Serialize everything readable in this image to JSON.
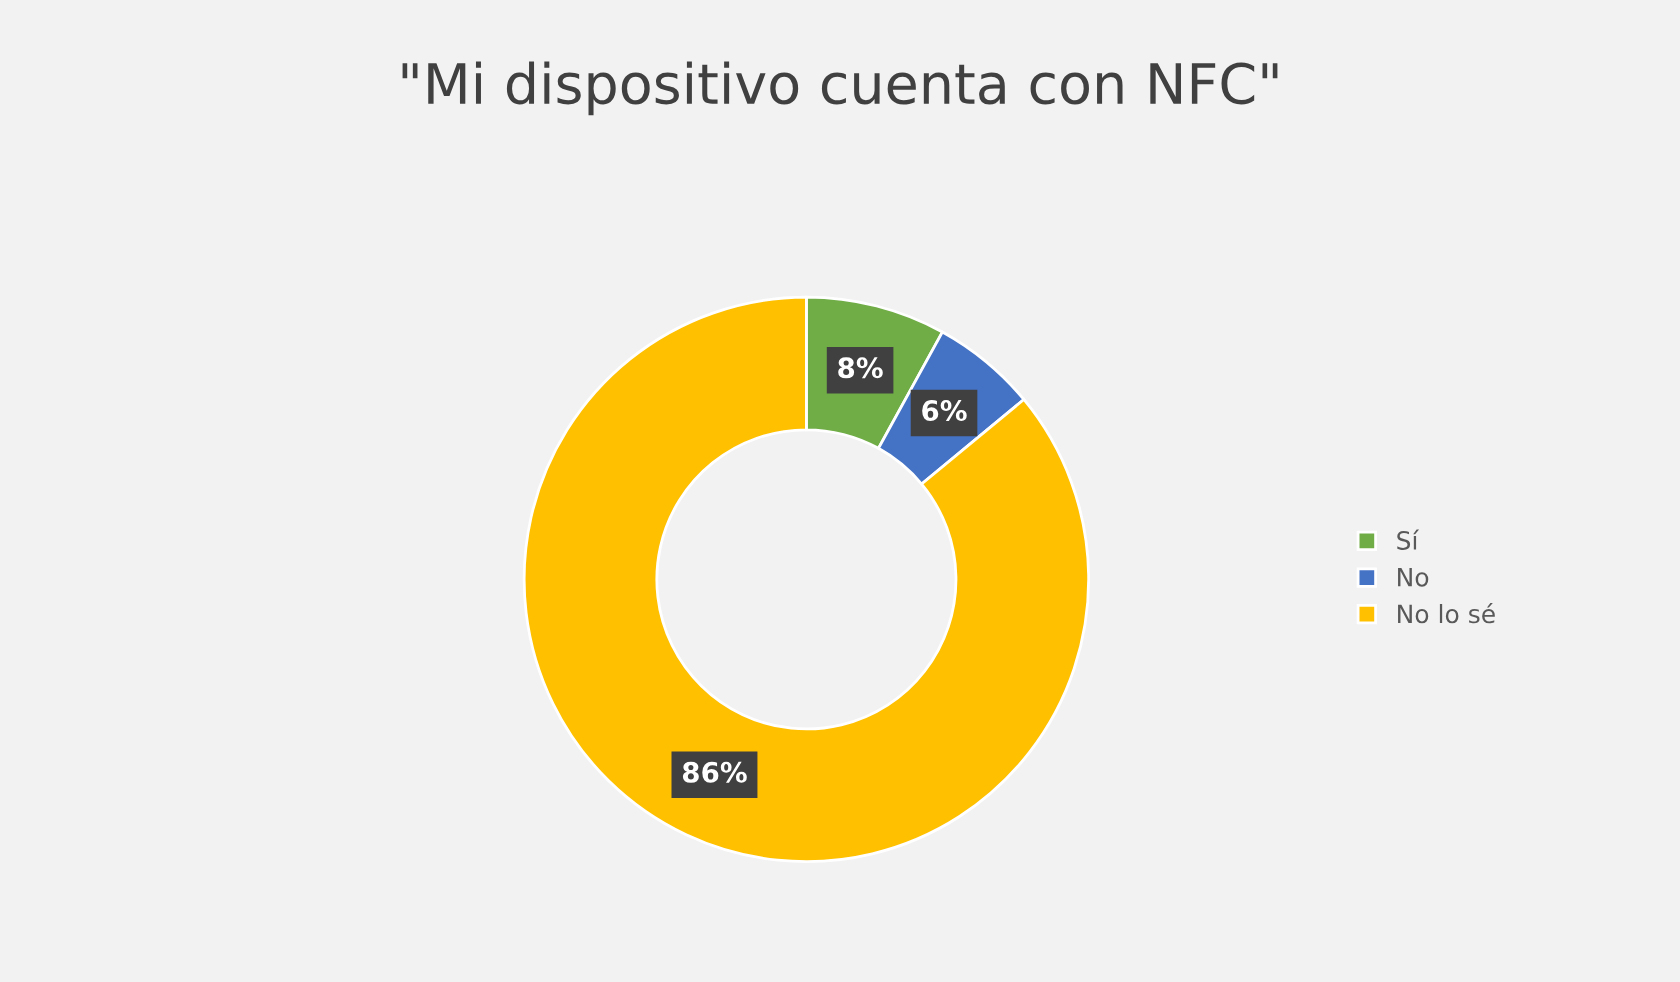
{
  "chart_data": {
    "type": "donut",
    "title": "\"Mi dispositivo cuenta con NFC\"",
    "categories": [
      "Sí",
      "No",
      "No lo sé"
    ],
    "values": [
      8,
      6,
      86
    ],
    "colors": [
      "#70ad47",
      "#4472c4",
      "#ffc000"
    ],
    "value_labels": [
      "8%",
      "6%",
      "86%"
    ],
    "legend": "right"
  }
}
